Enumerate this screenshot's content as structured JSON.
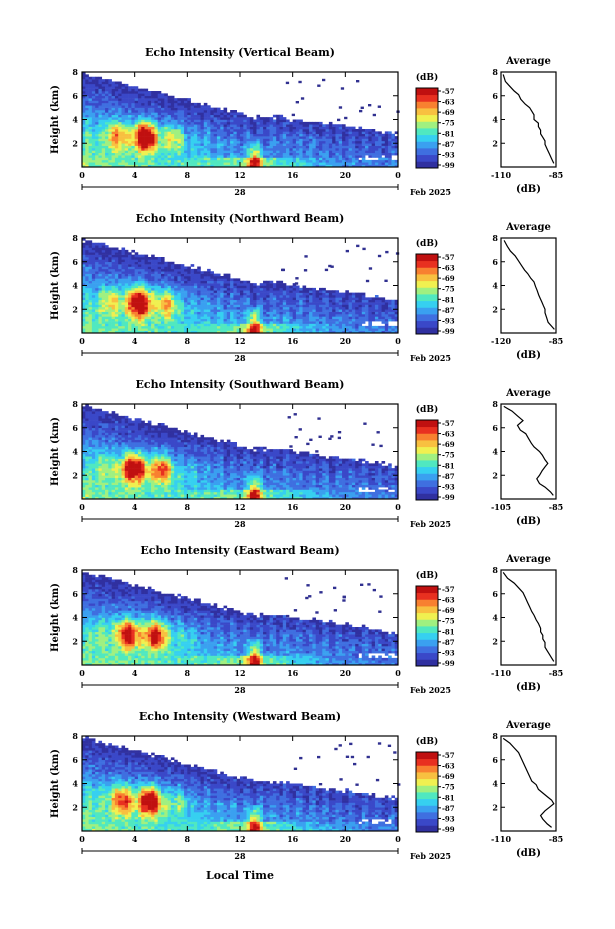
{
  "figure": {
    "xlabel": "Local Time",
    "date_label": "Feb 2025",
    "day_label": "28",
    "colorbar_unit": "(dB)",
    "colorbar_ticks": [
      "-57",
      "-63",
      "-69",
      "-75",
      "-81",
      "-87",
      "-93",
      "-99"
    ],
    "colors": [
      "#3030a0",
      "#3a48c8",
      "#3f6fe0",
      "#3aa0f0",
      "#36d0f0",
      "#50e8c0",
      "#a0f080",
      "#f0f050",
      "#f8c040",
      "#f88030",
      "#e83020",
      "#c01010"
    ]
  },
  "chart_data": [
    {
      "type": "heatmap",
      "title": "Echo Intensity (Vertical Beam)",
      "ylabel": "Height (km)",
      "xlim": [
        0,
        24
      ],
      "ylim": [
        0,
        8
      ],
      "x_ticks": [
        "0",
        "4",
        "8",
        "12",
        "16",
        "20",
        "0"
      ],
      "y_ticks": [
        "2",
        "4",
        "6",
        "8"
      ],
      "z_unit": "dB",
      "zlim": [
        -99,
        -57
      ],
      "profile": {
        "title": "Average",
        "xlabel": "(dB)",
        "xlim": [
          -110,
          -85
        ],
        "x_ticks": [
          "-110",
          "-85"
        ],
        "ylim": [
          0,
          8
        ],
        "y_ticks": [
          "2",
          "4",
          "6",
          "8"
        ],
        "x": [
          -109,
          -108,
          -106,
          -104,
          -102,
          -101,
          -99,
          -97,
          -96,
          -95,
          -95,
          -93,
          -93,
          -92,
          -92,
          -91,
          -90,
          -90,
          -89,
          -88,
          -87,
          -86
        ],
        "y": [
          7.8,
          7.2,
          6.8,
          6.4,
          6.1,
          5.7,
          5.3,
          5.0,
          4.7,
          4.4,
          4.0,
          3.7,
          3.4,
          3.1,
          2.8,
          2.5,
          2.2,
          1.9,
          1.5,
          1.1,
          0.7,
          0.3
        ]
      }
    },
    {
      "type": "heatmap",
      "title": "Echo Intensity (Northward Beam)",
      "ylabel": "Height (km)",
      "xlim": [
        0,
        24
      ],
      "ylim": [
        0,
        8
      ],
      "x_ticks": [
        "0",
        "4",
        "8",
        "12",
        "16",
        "20",
        "0"
      ],
      "y_ticks": [
        "2",
        "4",
        "6",
        "8"
      ],
      "z_unit": "dB",
      "zlim": [
        -99,
        -57
      ],
      "profile": {
        "title": "Average",
        "xlabel": "(dB)",
        "xlim": [
          -120,
          -85
        ],
        "x_ticks": [
          "-120",
          "-85"
        ],
        "ylim": [
          0,
          8
        ],
        "y_ticks": [
          "2",
          "4",
          "6",
          "8"
        ],
        "x": [
          -118,
          -116,
          -114,
          -111,
          -109,
          -107,
          -105,
          -103,
          -101,
          -99,
          -98,
          -97,
          -96,
          -95,
          -94,
          -93,
          -92,
          -92,
          -91,
          -90,
          -88,
          -86
        ],
        "y": [
          7.8,
          7.3,
          6.9,
          6.5,
          6.1,
          5.7,
          5.3,
          5.0,
          4.6,
          4.3,
          3.9,
          3.6,
          3.2,
          2.9,
          2.6,
          2.3,
          2.0,
          1.7,
          1.3,
          0.9,
          0.6,
          0.3
        ]
      }
    },
    {
      "type": "heatmap",
      "title": "Echo Intensity (Southward Beam)",
      "ylabel": "Height (km)",
      "xlim": [
        0,
        24
      ],
      "ylim": [
        0,
        8
      ],
      "x_ticks": [
        "0",
        "4",
        "8",
        "12",
        "16",
        "20",
        "0"
      ],
      "y_ticks": [
        "2",
        "4",
        "6",
        "8"
      ],
      "z_unit": "dB",
      "zlim": [
        -99,
        -57
      ],
      "profile": {
        "title": "Average",
        "xlabel": "(dB)",
        "xlim": [
          -105,
          -85
        ],
        "x_ticks": [
          "-105",
          "-85"
        ],
        "ylim": [
          0,
          8
        ],
        "y_ticks": [
          "2",
          "4",
          "6",
          "8"
        ],
        "x": [
          -104,
          -101,
          -99,
          -97,
          -99,
          -98,
          -96,
          -95,
          -94,
          -93,
          -91,
          -90,
          -89,
          -88,
          -89,
          -90,
          -91,
          -92,
          -91,
          -89,
          -87,
          -86
        ],
        "y": [
          7.8,
          7.4,
          7.0,
          6.6,
          6.2,
          5.8,
          5.5,
          5.1,
          4.7,
          4.4,
          4.0,
          3.7,
          3.3,
          3.0,
          2.7,
          2.4,
          2.0,
          1.7,
          1.3,
          1.0,
          0.6,
          0.3
        ]
      }
    },
    {
      "type": "heatmap",
      "title": "Echo Intensity (Eastward Beam)",
      "ylabel": "Height (km)",
      "xlim": [
        0,
        24
      ],
      "ylim": [
        0,
        8
      ],
      "x_ticks": [
        "0",
        "4",
        "8",
        "12",
        "16",
        "20",
        "0"
      ],
      "y_ticks": [
        "2",
        "4",
        "6",
        "8"
      ],
      "z_unit": "dB",
      "zlim": [
        -99,
        -57
      ],
      "profile": {
        "title": "Average",
        "xlabel": "(dB)",
        "xlim": [
          -110,
          -85
        ],
        "x_ticks": [
          "-110",
          "-85"
        ],
        "ylim": [
          0,
          8
        ],
        "y_ticks": [
          "2",
          "4",
          "6",
          "8"
        ],
        "x": [
          -109,
          -107,
          -104,
          -102,
          -100,
          -99,
          -98,
          -97,
          -96,
          -95,
          -94,
          -93,
          -92,
          -92,
          -91,
          -91,
          -90,
          -90,
          -89,
          -88,
          -87,
          -86
        ],
        "y": [
          7.8,
          7.3,
          6.9,
          6.5,
          6.1,
          5.7,
          5.3,
          4.9,
          4.5,
          4.2,
          3.8,
          3.5,
          3.1,
          2.8,
          2.5,
          2.2,
          1.9,
          1.5,
          1.2,
          0.9,
          0.6,
          0.3
        ]
      }
    },
    {
      "type": "heatmap",
      "title": "Echo Intensity (Westward Beam)",
      "ylabel": "Height (km)",
      "xlim": [
        0,
        24
      ],
      "ylim": [
        0,
        8
      ],
      "x_ticks": [
        "0",
        "4",
        "8",
        "12",
        "16",
        "20",
        "0"
      ],
      "y_ticks": [
        "2",
        "4",
        "6",
        "8"
      ],
      "z_unit": "dB",
      "zlim": [
        -99,
        -57
      ],
      "profile": {
        "title": "Average",
        "xlabel": "(dB)",
        "xlim": [
          -110,
          -85
        ],
        "x_ticks": [
          "-110",
          "-85"
        ],
        "ylim": [
          0,
          8
        ],
        "y_ticks": [
          "2",
          "4",
          "6",
          "8"
        ],
        "x": [
          -109,
          -106,
          -104,
          -102,
          -101,
          -100,
          -99,
          -98,
          -97,
          -96,
          -94,
          -93,
          -91,
          -89,
          -87,
          -86,
          -88,
          -90,
          -92,
          -91,
          -89,
          -87
        ],
        "y": [
          7.8,
          7.4,
          7.0,
          6.6,
          6.2,
          5.8,
          5.4,
          5.0,
          4.6,
          4.2,
          3.9,
          3.5,
          3.2,
          2.9,
          2.6,
          2.3,
          2.0,
          1.7,
          1.3,
          1.0,
          0.6,
          0.3
        ]
      }
    }
  ]
}
